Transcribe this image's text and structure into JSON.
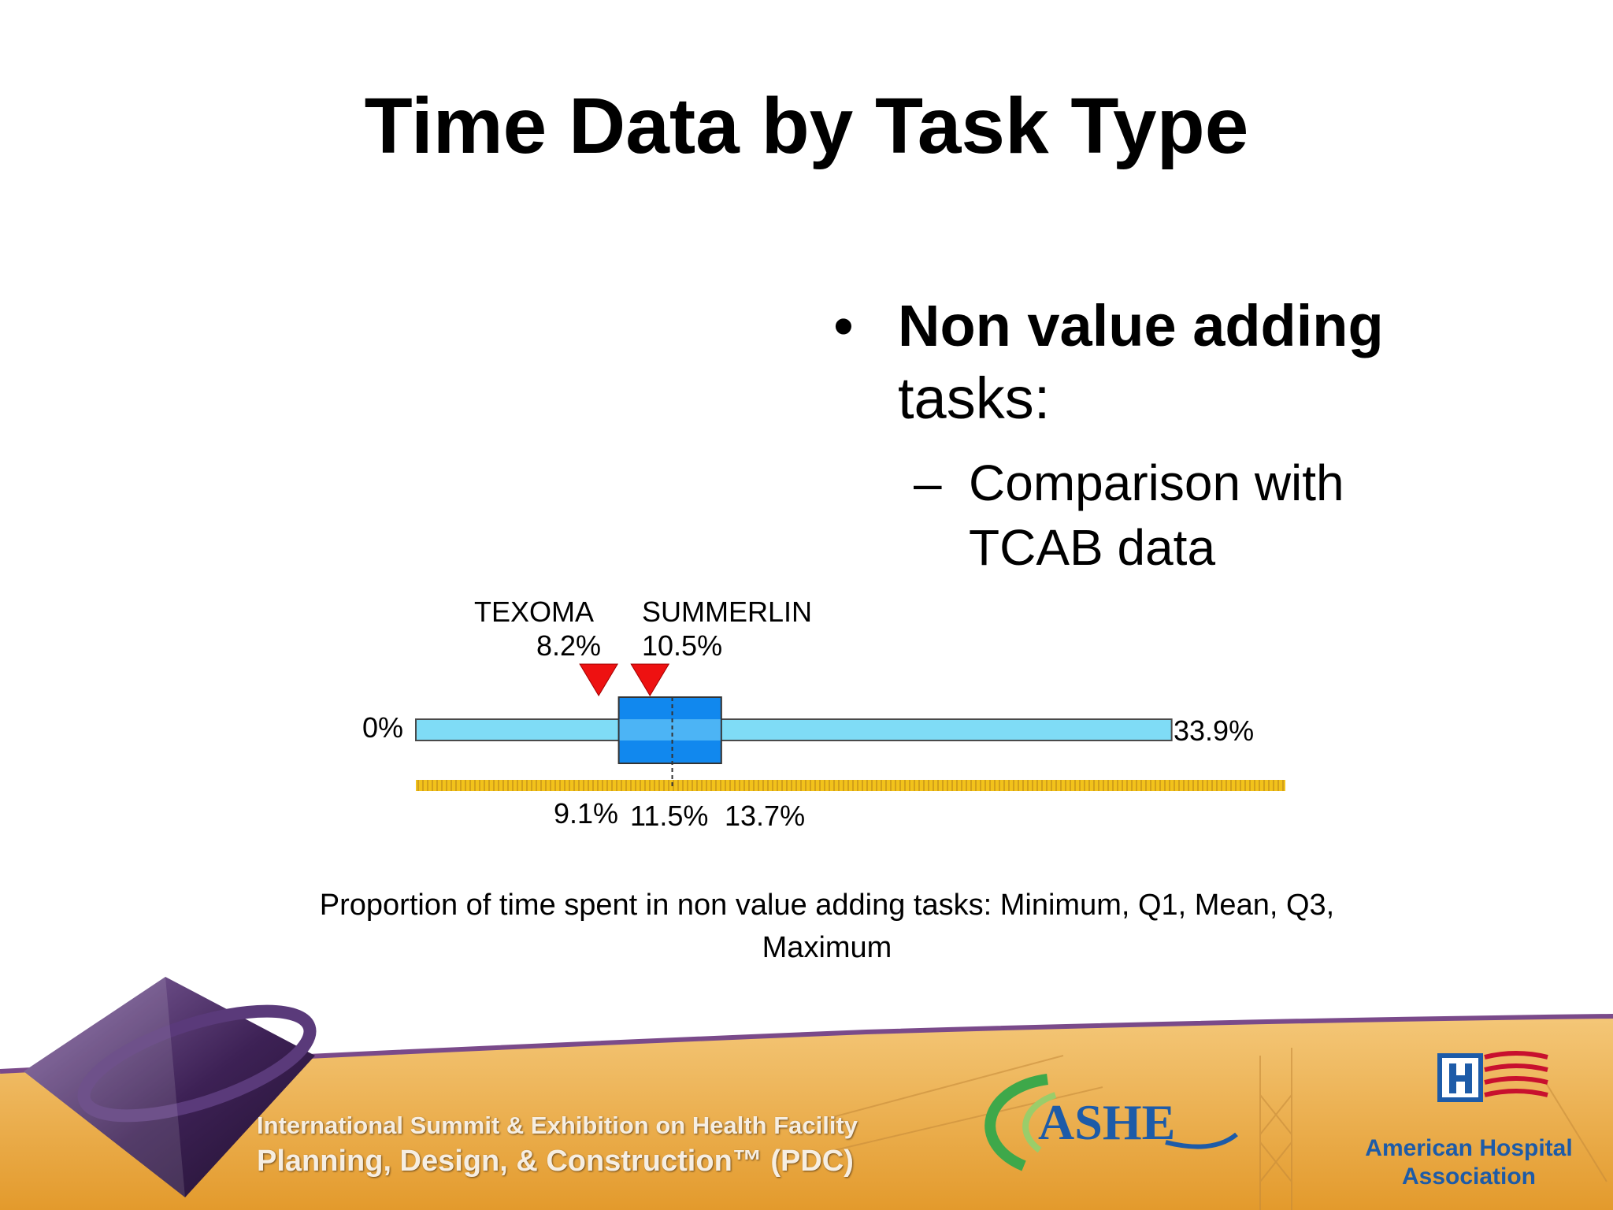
{
  "slide": {
    "title": "Time Data by Task Type",
    "bullet": {
      "marker": "•",
      "bold_text": "Non value adding",
      "rest_text": "tasks:"
    },
    "sub_bullet": {
      "marker": "–",
      "line1": "Comparison with",
      "line2": "TCAB data"
    },
    "caption_line1": "Proportion of time spent in non value adding tasks: Minimum, Q1, Mean, Q3,",
    "caption_line2": "Maximum"
  },
  "chart_data": {
    "type": "box",
    "min": 0,
    "q1": 9.1,
    "mean": 11.5,
    "q3": 13.7,
    "max": 33.9,
    "axis_max": 39,
    "labels": {
      "min": "0%",
      "max": "33.9%",
      "q1": "9.1%",
      "mean": "11.5%",
      "q3": "13.7%"
    },
    "markers": [
      {
        "name": "TEXOMA",
        "value": 8.2,
        "label": "8.2%"
      },
      {
        "name": "SUMMERLIN",
        "value": 10.5,
        "label": "10.5%"
      }
    ],
    "colors": {
      "whisker_bar": "#7fdcf6",
      "box": "#1188ee",
      "box_inner": "#4cb4f5",
      "marker": "#ee1111",
      "axis_band": "#f2c21b"
    }
  },
  "footer": {
    "summit_title": "International Summit & Exhibition on Health Facility",
    "summit_subtitle": "Planning, Design, & Construction™ (PDC)",
    "ashe_logo_text": "ASHE",
    "aha_line1": "American Hospital",
    "aha_line2": "Association",
    "colors": {
      "banner": "#eaa73d",
      "banner_light": "#f4c778",
      "diamond": "#3d2155",
      "logo_blue": "#1d5ba8",
      "logo_green": "#3ea84a",
      "flag_red": "#c8102e"
    }
  }
}
